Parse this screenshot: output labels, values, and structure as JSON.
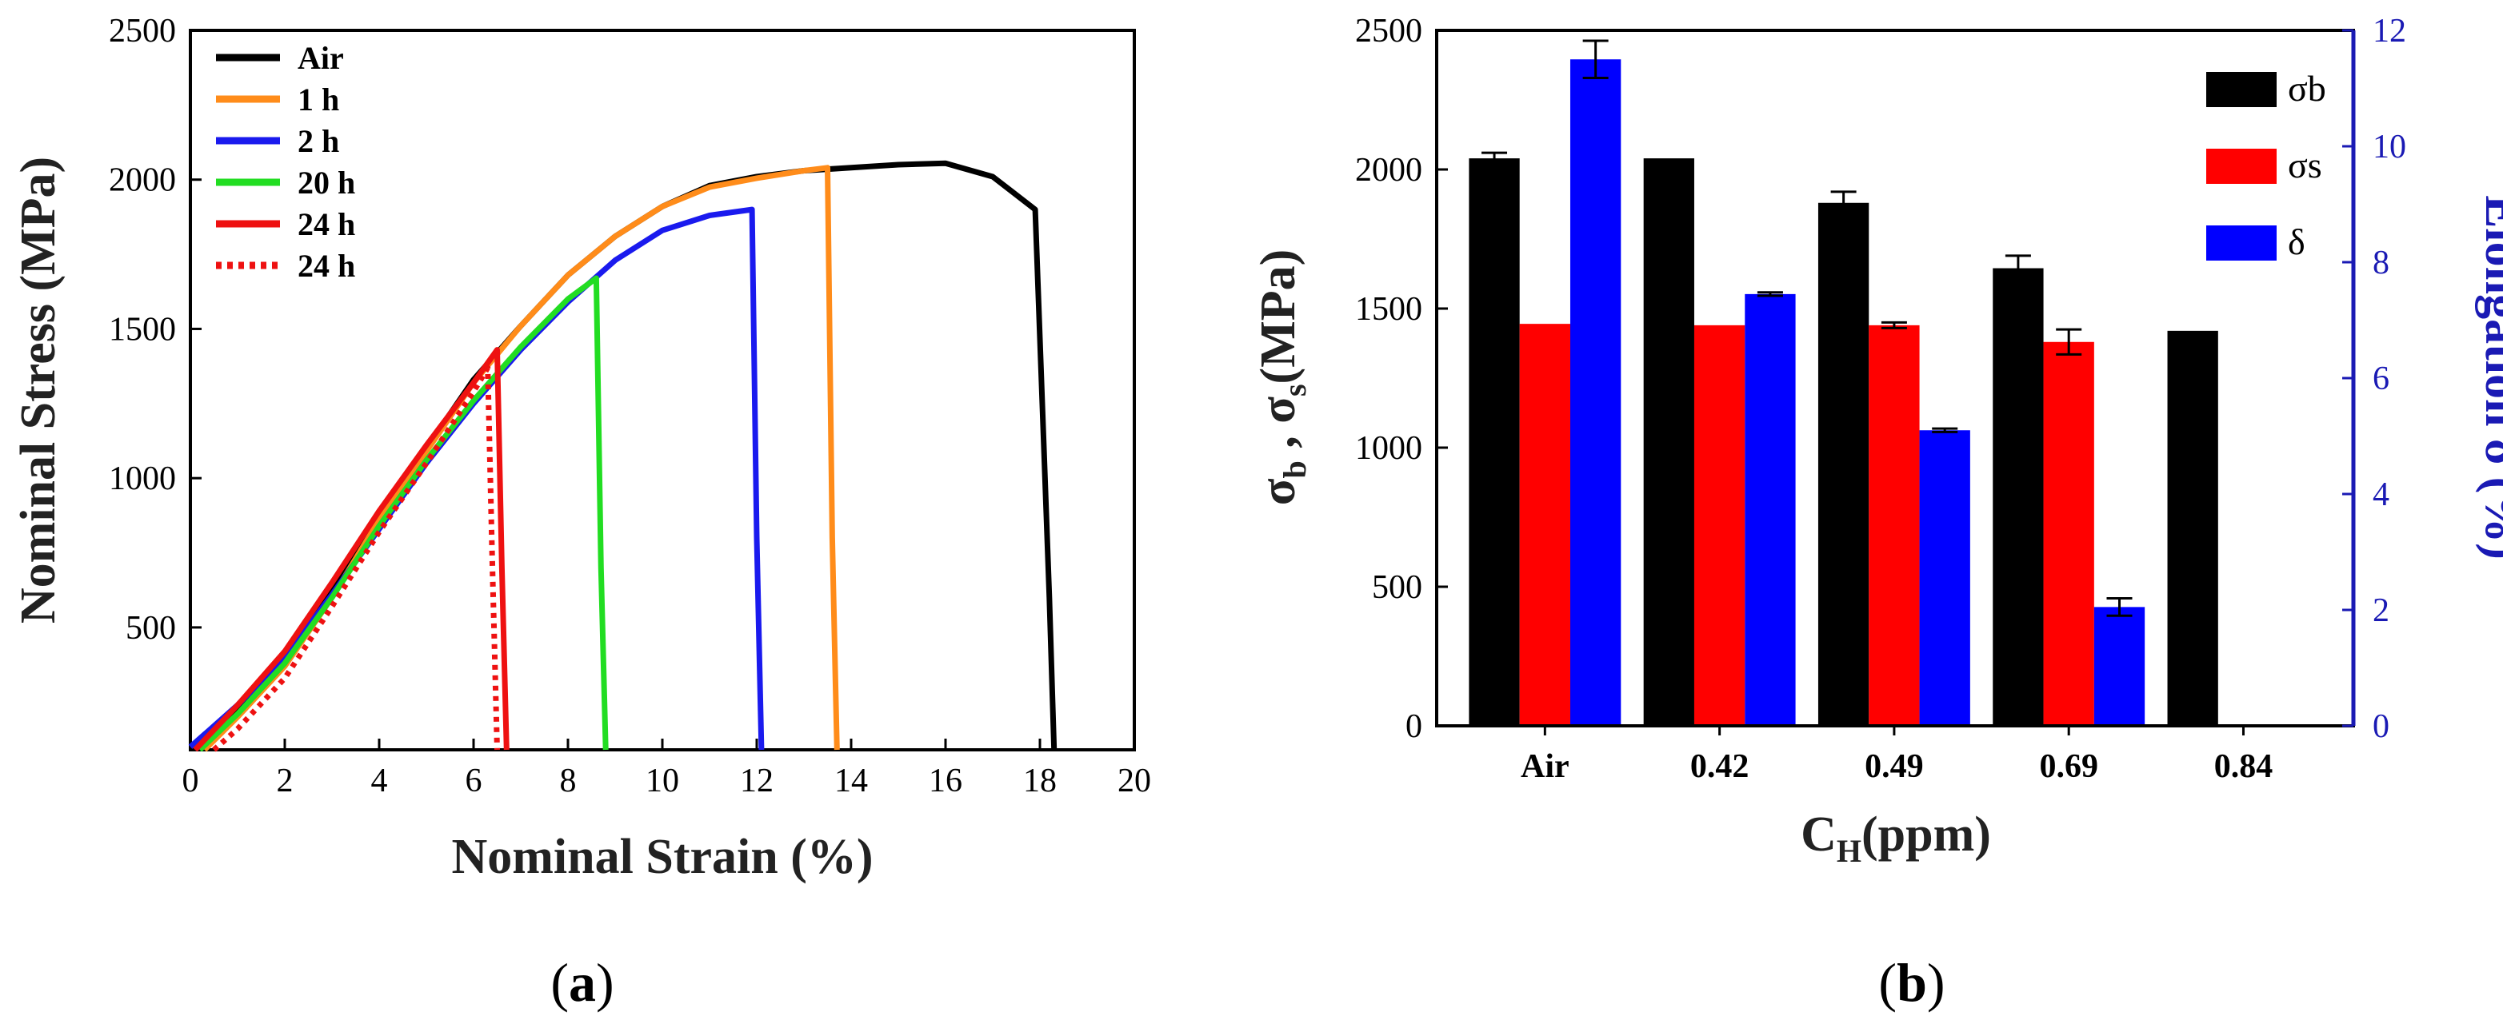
{
  "colors": {
    "air": "#000000",
    "h1": "#ff8c1a",
    "h2": "#1a1aee",
    "h20": "#22dd22",
    "h24": "#ee1111",
    "sigma_b": "#000000",
    "sigma_s": "#ff0000",
    "delta": "#0000ff",
    "right_axis": "#1a1ab4"
  },
  "chart_data": [
    {
      "id": "a",
      "type": "line",
      "panel_label": {
        "open": "(",
        "letter": "a",
        "close": ")"
      },
      "xlabel": "Nominal Strain (%)",
      "ylabel": "Nominal Stress (MPa)",
      "xlim": [
        0,
        20
      ],
      "ylim": [
        90,
        2500
      ],
      "xticks": [
        0,
        2,
        4,
        6,
        8,
        10,
        12,
        14,
        16,
        18,
        20
      ],
      "yticks": [
        500,
        1000,
        1500,
        2000,
        2500
      ],
      "legend": [
        "Air",
        "1 h",
        "2 h",
        "20 h",
        "24 h",
        "24 h"
      ],
      "series": [
        {
          "name": "Air",
          "color_key": "air",
          "dash": false,
          "x": [
            0,
            1,
            2,
            3,
            4,
            5,
            6,
            7,
            8,
            9,
            10,
            11,
            12,
            13,
            14,
            15,
            16,
            17,
            17.9,
            18.2,
            18.3
          ],
          "y": [
            100,
            230,
            390,
            620,
            880,
            1100,
            1330,
            1510,
            1680,
            1810,
            1910,
            1980,
            2010,
            2030,
            2040,
            2050,
            2055,
            2010,
            1900,
            600,
            90
          ]
        },
        {
          "name": "1 h",
          "color_key": "h1",
          "dash": false,
          "x": [
            0.3,
            1,
            2,
            3,
            4,
            5,
            6,
            7,
            8,
            9,
            10,
            11,
            12,
            13,
            13.5,
            13.6,
            13.7
          ],
          "y": [
            90,
            200,
            370,
            600,
            860,
            1090,
            1320,
            1510,
            1680,
            1810,
            1910,
            1975,
            2005,
            2030,
            2040,
            800,
            90
          ]
        },
        {
          "name": "2 h",
          "color_key": "h2",
          "dash": false,
          "x": [
            0,
            1,
            2,
            3,
            4,
            5,
            6,
            7,
            8,
            9,
            10,
            11,
            11.9,
            12.0,
            12.1
          ],
          "y": [
            100,
            240,
            400,
            610,
            830,
            1050,
            1250,
            1430,
            1590,
            1730,
            1830,
            1880,
            1900,
            800,
            90
          ]
        },
        {
          "name": "20 h",
          "color_key": "h20",
          "dash": false,
          "x": [
            0.2,
            1,
            2,
            3,
            4,
            5,
            6,
            7,
            8,
            8.6,
            8.7,
            8.8
          ],
          "y": [
            90,
            210,
            380,
            600,
            840,
            1060,
            1260,
            1440,
            1600,
            1670,
            700,
            90
          ]
        },
        {
          "name": "24 h",
          "color_key": "h24",
          "dash": false,
          "x": [
            0.1,
            1,
            2,
            3,
            4,
            5,
            6,
            6.5,
            6.6,
            6.7
          ],
          "y": [
            90,
            240,
            420,
            650,
            890,
            1110,
            1320,
            1430,
            700,
            90
          ]
        },
        {
          "name": "24 h",
          "color_key": "h24",
          "dash": true,
          "x": [
            0.5,
            1,
            2,
            3,
            4,
            5,
            6,
            6.3,
            6.4,
            6.5
          ],
          "y": [
            90,
            160,
            330,
            570,
            820,
            1050,
            1290,
            1370,
            700,
            90
          ]
        }
      ]
    },
    {
      "id": "b",
      "type": "bar",
      "panel_label": {
        "open": "(",
        "letter": "b",
        "close": ")"
      },
      "categories": [
        "Air",
        "0.42",
        "0.49",
        "0.69",
        "0.84"
      ],
      "xlabel": {
        "main": "C",
        "sub": "H",
        "rest": "(ppm)"
      },
      "ylabel": {
        "s1": "σ",
        "sub1": "b",
        "mid": " , σ",
        "sub2": "s",
        "rest": "(MPa)"
      },
      "y2label": "Elongation δ (%)",
      "ylim": [
        0,
        2500
      ],
      "y2lim": [
        0,
        12
      ],
      "yticks": [
        0,
        500,
        1000,
        1500,
        2000,
        2500
      ],
      "y2ticks": [
        0,
        2,
        4,
        6,
        8,
        10,
        12
      ],
      "legend": [
        "σb",
        "σs",
        "δ"
      ],
      "series": [
        {
          "name": "σb",
          "color_key": "sigma_b",
          "axis": "left",
          "values": [
            2040,
            2040,
            1880,
            1645,
            1420
          ],
          "errors": [
            20,
            0,
            40,
            45,
            0
          ]
        },
        {
          "name": "σs",
          "color_key": "sigma_s",
          "axis": "left",
          "values": [
            1445,
            1440,
            1440,
            1380,
            null
          ],
          "errors": [
            0,
            0,
            10,
            45,
            null
          ]
        },
        {
          "name": "δ",
          "color_key": "delta",
          "axis": "right",
          "values": [
            11.5,
            7.45,
            5.1,
            2.05,
            null
          ],
          "errors": [
            0.32,
            0.03,
            0.03,
            0.15,
            null
          ]
        }
      ]
    }
  ]
}
